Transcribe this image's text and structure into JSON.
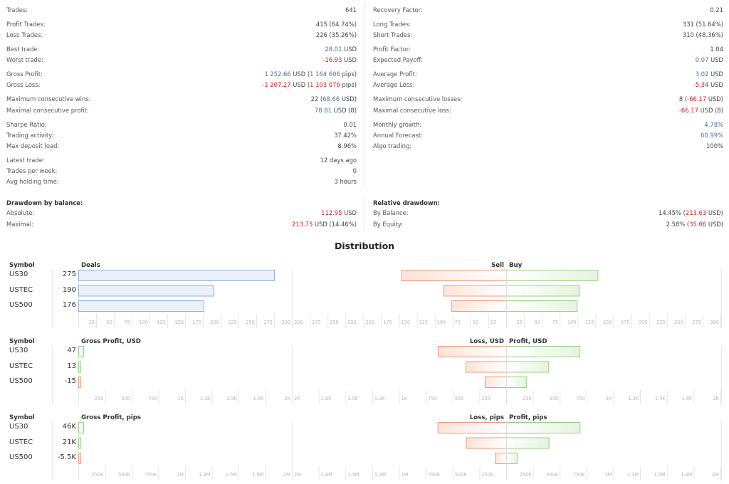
{
  "stats_left": [
    {
      "label": "Trades:",
      "value": [
        {
          "t": "641",
          "c": "dark"
        }
      ]
    },
    {
      "label": "Profit Trades:",
      "value": [
        {
          "t": "415 (64.74%)",
          "c": "dark"
        }
      ]
    },
    {
      "label": "Loss Trades:",
      "value": [
        {
          "t": "226 (35.26%)",
          "c": "dark"
        }
      ]
    },
    {
      "label": "Best trade:",
      "value": [
        {
          "t": "28.01",
          "c": "blue"
        },
        {
          "t": " USD",
          "c": "dark"
        }
      ]
    },
    {
      "label": "Worst trade:",
      "value": [
        {
          "t": "-16.93",
          "c": "red"
        },
        {
          "t": " USD",
          "c": "dark"
        }
      ]
    },
    {
      "label": "Gross Profit:",
      "value": [
        {
          "t": "1 252.66",
          "c": "blue"
        },
        {
          "t": " USD (",
          "c": "dark"
        },
        {
          "t": "1 164 606",
          "c": "blue"
        },
        {
          "t": " pips)",
          "c": "dark"
        }
      ]
    },
    {
      "label": "Gross Loss:",
      "value": [
        {
          "t": "-1 207.27",
          "c": "red"
        },
        {
          "t": " USD (",
          "c": "dark"
        },
        {
          "t": "1 103 076",
          "c": "red"
        },
        {
          "t": " pips)",
          "c": "dark"
        }
      ]
    },
    {
      "label": "Maximum consecutive wins:",
      "value": [
        {
          "t": "22 (",
          "c": "dark"
        },
        {
          "t": "68.66",
          "c": "blue"
        },
        {
          "t": " USD)",
          "c": "dark"
        }
      ]
    },
    {
      "label": "Maximal consecutive profit:",
      "value": [
        {
          "t": "78.81",
          "c": "blue"
        },
        {
          "t": " USD (8)",
          "c": "dark"
        }
      ]
    },
    {
      "label": "Sharpe Ratio:",
      "value": [
        {
          "t": "0.01",
          "c": "dark"
        }
      ]
    },
    {
      "label": "Trading activity:",
      "value": [
        {
          "t": "37.42%",
          "c": "dark"
        }
      ]
    },
    {
      "label": "Max deposit load:",
      "value": [
        {
          "t": "8.96%",
          "c": "dark"
        }
      ]
    },
    {
      "label": "Latest trade:",
      "value": [
        {
          "t": "12 days ago",
          "c": "dark"
        }
      ]
    },
    {
      "label": "Trades per week:",
      "value": [
        {
          "t": "0",
          "c": "dark"
        }
      ]
    },
    {
      "label": "Avg holding time:",
      "value": [
        {
          "t": "3 hours",
          "c": "dark"
        }
      ]
    }
  ],
  "stats_right": [
    {
      "label": "Recovery Factor:",
      "value": [
        {
          "t": "0.21",
          "c": "dark"
        }
      ]
    },
    {
      "label": "Long Trades:",
      "value": [
        {
          "t": "331 (51.64%)",
          "c": "dark"
        }
      ]
    },
    {
      "label": "Short Trades:",
      "value": [
        {
          "t": "310 (48.36%)",
          "c": "dark"
        }
      ]
    },
    {
      "label": "Profit Factor:",
      "value": [
        {
          "t": "1.04",
          "c": "dark"
        }
      ]
    },
    {
      "label": "Expected Payoff:",
      "value": [
        {
          "t": "0.07",
          "c": "blue"
        },
        {
          "t": " USD",
          "c": "dark"
        }
      ]
    },
    {
      "label": "Average Profit:",
      "value": [
        {
          "t": "3.02",
          "c": "blue"
        },
        {
          "t": " USD",
          "c": "dark"
        }
      ]
    },
    {
      "label": "Average Loss:",
      "value": [
        {
          "t": "-5.34",
          "c": "red"
        },
        {
          "t": " USD",
          "c": "dark"
        }
      ]
    },
    {
      "label": "Maximum consecutive losses:",
      "value": [
        {
          "t": "8 (",
          "c": "dark"
        },
        {
          "t": "-66.17",
          "c": "red"
        },
        {
          "t": " USD)",
          "c": "dark"
        }
      ]
    },
    {
      "label": "Maximal consecutive loss:",
      "value": [
        {
          "t": "-66.17",
          "c": "red"
        },
        {
          "t": " USD (8)",
          "c": "dark"
        }
      ]
    },
    {
      "label": "Monthly growth:",
      "value": [
        {
          "t": "4.78%",
          "c": "blue"
        }
      ]
    },
    {
      "label": "Annual Forecast:",
      "value": [
        {
          "t": "60.99%",
          "c": "blue"
        }
      ]
    },
    {
      "label": "Algo trading:",
      "value": [
        {
          "t": "100%",
          "c": "dark"
        }
      ]
    }
  ],
  "drawdown_balance": {
    "title": "Drawdown by balance:",
    "rows": [
      {
        "label": "Absolute:",
        "value": [
          {
            "t": "112.95",
            "c": "red"
          },
          {
            "t": " USD",
            "c": "dark"
          }
        ]
      },
      {
        "label": "Maximal:",
        "value": [
          {
            "t": "213.75",
            "c": "red"
          },
          {
            "t": " USD (14.46%)",
            "c": "dark"
          }
        ]
      }
    ]
  },
  "relative_drawdown": {
    "title": "Relative drawdown:",
    "rows": [
      {
        "label": "By Balance:",
        "value": [
          {
            "t": "14.45% (",
            "c": "dark"
          },
          {
            "t": "213.63",
            "c": "red"
          },
          {
            "t": " USD)",
            "c": "dark"
          }
        ]
      },
      {
        "label": "By Equity:",
        "value": [
          {
            "t": "2.58% (",
            "c": "dark"
          },
          {
            "t": "35.06",
            "c": "red"
          },
          {
            "t": " USD)",
            "c": "dark"
          }
        ]
      }
    ]
  },
  "colors": {
    "blue": "#4a6fa5",
    "red": "#d42020",
    "bar_blue": "#8fb0d8",
    "bar_green": "#98cf86",
    "bar_red": "#ef9a80"
  },
  "distribution": {
    "title": "Distribution",
    "symbol_header": "Symbol",
    "sections": [
      {
        "header": "Deals",
        "neg_header": "Sell",
        "pos_header": "Buy",
        "max": 300,
        "ticks": [
          "25",
          "50",
          "75",
          "100",
          "125",
          "150",
          "175",
          "200",
          "225",
          "250",
          "275",
          "300"
        ],
        "rows": [
          {
            "symbol": "US30",
            "value_label": "275",
            "value": 275,
            "neg": 147,
            "pos": 128,
            "kind": "count"
          },
          {
            "symbol": "USTEC",
            "value_label": "190",
            "value": 190,
            "neg": 88,
            "pos": 102,
            "kind": "count"
          },
          {
            "symbol": "US500",
            "value_label": "176",
            "value": 176,
            "neg": 77,
            "pos": 99,
            "kind": "count"
          }
        ]
      },
      {
        "header": "Gross Profit, USD",
        "neg_header": "Loss, USD",
        "pos_header": "Profit, USD",
        "max": 2000,
        "ticks": [
          "250",
          "500",
          "750",
          "1K",
          "1.3K",
          "1.5K",
          "1.8K",
          "2K"
        ],
        "rows": [
          {
            "symbol": "US30",
            "value_label": "47",
            "value": 47,
            "neg": 638,
            "pos": 685
          },
          {
            "symbol": "USTEC",
            "value_label": "13",
            "value": 13,
            "neg": 380,
            "pos": 393
          },
          {
            "symbol": "US500",
            "value_label": "-15",
            "value": -15,
            "neg": 200,
            "pos": 185
          }
        ]
      },
      {
        "header": "Gross Profit, pips",
        "neg_header": "Loss, pips",
        "pos_header": "Profit, pips",
        "max": 2000000,
        "ticks": [
          "250K",
          "500K",
          "750K",
          "1M",
          "1.3M",
          "1.5M",
          "1.8M",
          "2M"
        ],
        "rows": [
          {
            "symbol": "US30",
            "value_label": "46K",
            "value": 46000,
            "neg": 640000,
            "pos": 686000
          },
          {
            "symbol": "USTEC",
            "value_label": "21K",
            "value": 21000,
            "neg": 375000,
            "pos": 396000
          },
          {
            "symbol": "US500",
            "value_label": "-5.5K",
            "value": -5500,
            "neg": 105000,
            "pos": 99500
          }
        ]
      }
    ]
  }
}
